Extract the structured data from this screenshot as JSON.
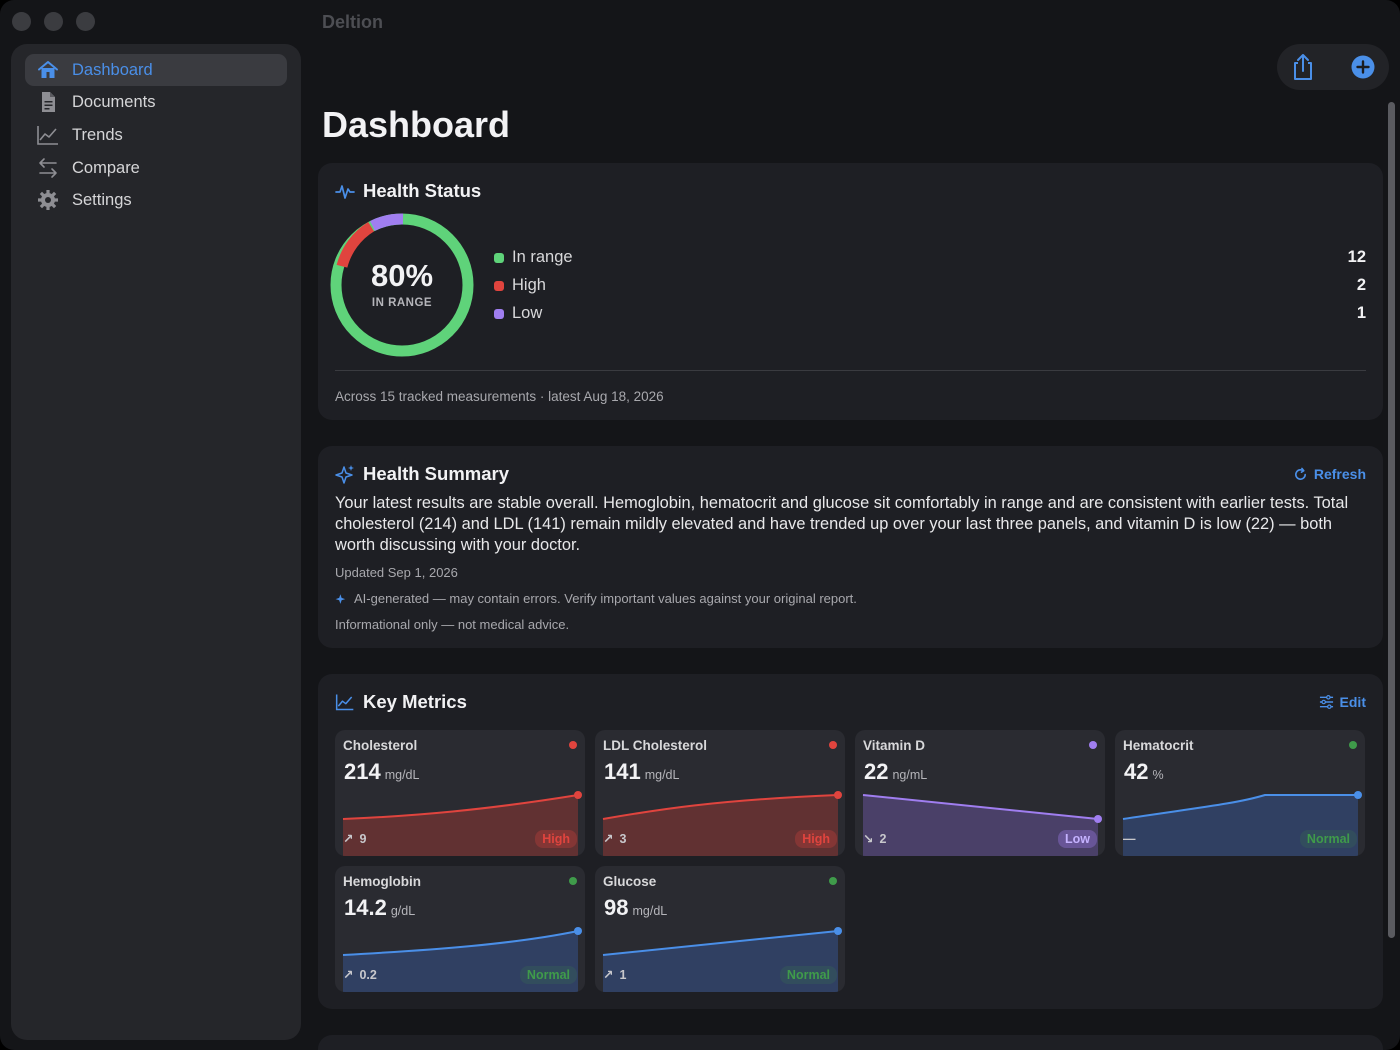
{
  "app": {
    "title": "Deltion"
  },
  "sidebar": {
    "items": [
      {
        "label": "Dashboard",
        "icon": "house-icon",
        "active": true
      },
      {
        "label": "Documents",
        "icon": "document-icon"
      },
      {
        "label": "Trends",
        "icon": "chart-line-icon"
      },
      {
        "label": "Compare",
        "icon": "arrows-swap-icon"
      },
      {
        "label": "Settings",
        "icon": "gear-icon"
      }
    ]
  },
  "toolbar": {
    "share_icon": "share-icon",
    "add_icon": "plus-circle-icon"
  },
  "page": {
    "title": "Dashboard"
  },
  "health_status": {
    "heading": "Health Status",
    "percent": "80%",
    "percent_caption": "IN RANGE",
    "legend": [
      {
        "label": "In range",
        "count": "12",
        "color": "#5fd37a"
      },
      {
        "label": "High",
        "count": "2",
        "color": "#e0443e"
      },
      {
        "label": "Low",
        "count": "1",
        "color": "#a07ef0"
      }
    ],
    "footer": "Across 15 tracked measurements · latest Aug 18, 2026"
  },
  "health_summary": {
    "heading": "Health Summary",
    "refresh_label": "Refresh",
    "body": "Your latest results are stable overall. Hemoglobin, hematocrit and glucose sit comfortably in range and are consistent with earlier tests. Total cholesterol (214) and LDL (141) remain mildly elevated and have trended up over your last three panels, and vitamin D is low (22) — both worth discussing with your doctor.",
    "updated": "Updated Sep 1, 2026",
    "ai_note": "AI-generated — may contain errors. Verify important values against your original report.",
    "disclaimer": "Informational only — not medical advice."
  },
  "key_metrics": {
    "heading": "Key Metrics",
    "edit_label": "Edit",
    "tiles": [
      {
        "name": "Cholesterol",
        "value": "214",
        "unit": "mg/dL",
        "delta_arrow": "↗",
        "delta": "9",
        "status": "High",
        "status_key": "high"
      },
      {
        "name": "LDL Cholesterol",
        "value": "141",
        "unit": "mg/dL",
        "delta_arrow": "↗",
        "delta": "3",
        "status": "High",
        "status_key": "high"
      },
      {
        "name": "Vitamin D",
        "value": "22",
        "unit": "ng/mL",
        "delta_arrow": "↘",
        "delta": "2",
        "status": "Low",
        "status_key": "low"
      },
      {
        "name": "Hematocrit",
        "value": "42",
        "unit": "%",
        "delta_arrow": "—",
        "delta": "",
        "status": "Normal",
        "status_key": "normal"
      },
      {
        "name": "Hemoglobin",
        "value": "14.2",
        "unit": "g/dL",
        "delta_arrow": "↗",
        "delta": "0.2",
        "status": "Normal",
        "status_key": "normal"
      },
      {
        "name": "Glucose",
        "value": "98",
        "unit": "mg/dL",
        "delta_arrow": "↗",
        "delta": "1",
        "status": "Normal",
        "status_key": "normal"
      }
    ]
  },
  "colors": {
    "accent": "#4a8fe8",
    "high": "#e0443e",
    "low": "#a07ef0",
    "normal": "#4a8fe8",
    "in_range": "#5fd37a"
  }
}
